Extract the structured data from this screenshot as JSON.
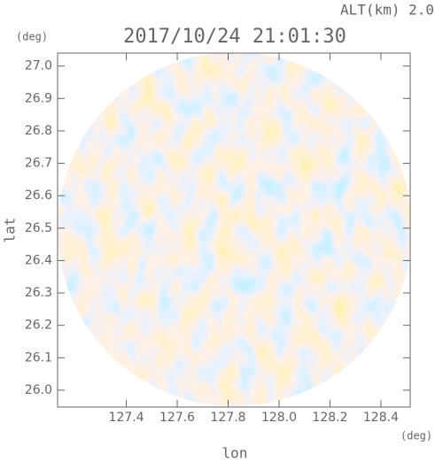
{
  "chart_data": {
    "type": "radar-ppi",
    "title": "2017/10/24 21:01:30",
    "subtitle": "ALT(km) 2.0",
    "x_label": "lon",
    "y_label": "lat",
    "x_unit": "(deg)",
    "y_unit": "(deg)",
    "xlim": [
      127.13,
      128.515
    ],
    "ylim": [
      25.948,
      27.04
    ],
    "xticks": [
      127.4,
      127.6,
      127.8,
      {
        "value": 128.0,
        "label": "128.0"
      },
      128.2,
      128.4
    ],
    "yticks": [
      {
        "value": 26.0,
        "label": "26.0"
      },
      26.1,
      26.2,
      26.3,
      26.4,
      26.5,
      26.6,
      26.7,
      26.8,
      26.9,
      {
        "value": 27.0,
        "label": "27.0"
      }
    ]
  }
}
